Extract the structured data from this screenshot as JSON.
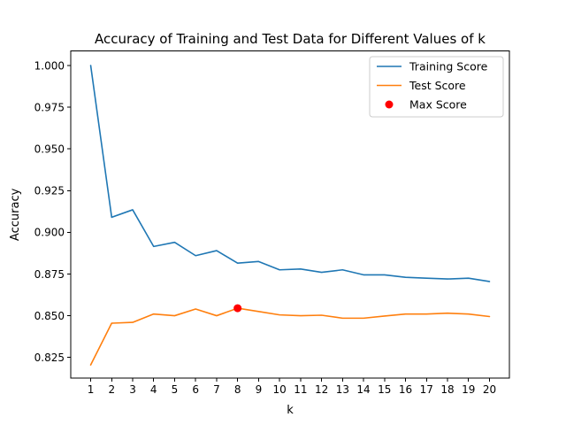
{
  "chart_data": {
    "type": "line",
    "title": "Accuracy of Training and Test Data for Different Values of k",
    "xlabel": "k",
    "ylabel": "Accuracy",
    "x": [
      1,
      2,
      3,
      4,
      5,
      6,
      7,
      8,
      9,
      10,
      11,
      12,
      13,
      14,
      15,
      16,
      17,
      18,
      19,
      20
    ],
    "xlim": [
      0.05,
      20.95
    ],
    "ylim": [
      0.8125,
      1.0087
    ],
    "yticks": [
      0.825,
      0.85,
      0.875,
      0.9,
      0.925,
      0.95,
      0.975,
      1.0
    ],
    "ytick_labels": [
      "0.825",
      "0.850",
      "0.875",
      "0.900",
      "0.925",
      "0.950",
      "0.975",
      "1.000"
    ],
    "xticks": [
      1,
      2,
      3,
      4,
      5,
      6,
      7,
      8,
      9,
      10,
      11,
      12,
      13,
      14,
      15,
      16,
      17,
      18,
      19,
      20
    ],
    "xtick_labels": [
      "1",
      "2",
      "3",
      "4",
      "5",
      "6",
      "7",
      "8",
      "9",
      "10",
      "11",
      "12",
      "13",
      "14",
      "15",
      "16",
      "17",
      "18",
      "19",
      "20"
    ],
    "grid": false,
    "legend_position": "top-right",
    "series": [
      {
        "name": "Training Score",
        "color": "#1f77b4",
        "kind": "line",
        "values": [
          1.0,
          0.909,
          0.9135,
          0.8915,
          0.894,
          0.886,
          0.889,
          0.8815,
          0.8825,
          0.8775,
          0.878,
          0.876,
          0.8775,
          0.8745,
          0.8745,
          0.873,
          0.8725,
          0.872,
          0.8725,
          0.8705
        ]
      },
      {
        "name": "Test Score",
        "color": "#ff7f0e",
        "kind": "line",
        "values": [
          0.8205,
          0.8455,
          0.846,
          0.851,
          0.85,
          0.854,
          0.85,
          0.8545,
          0.8525,
          0.8505,
          0.85,
          0.8503,
          0.8485,
          0.8485,
          0.8498,
          0.851,
          0.851,
          0.8515,
          0.851,
          0.8495
        ]
      },
      {
        "name": "Max Score",
        "color": "#ff0000",
        "kind": "point",
        "points": [
          {
            "x": 8,
            "y": 0.8545
          }
        ]
      }
    ]
  }
}
